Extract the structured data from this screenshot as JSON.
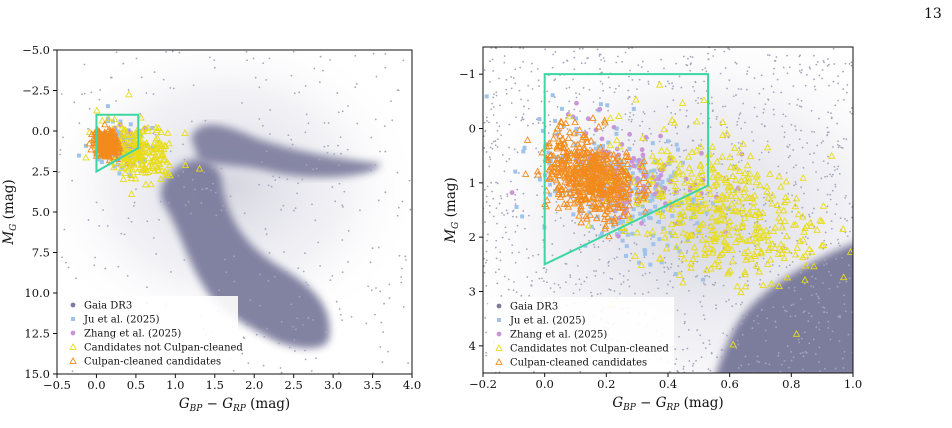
{
  "page": {
    "number": "13"
  },
  "colors": {
    "gaia": "#7b7b9d",
    "ju": "#9fc3ea",
    "zhang": "#c995d6",
    "not_cleaned": "#ece339",
    "cleaned": "#f28b1c",
    "box": "#3bd6a1"
  },
  "chart_data": [
    {
      "type": "scatter",
      "xlabel": "G_BP − G_RP (mag)",
      "ylabel": "M_G (mag)",
      "xlim": [
        -0.5,
        4.0
      ],
      "ylim": [
        15.0,
        -5.0
      ],
      "y_inverted": true,
      "xticks": [
        "−0.5",
        "0.0",
        "0.5",
        "1.0",
        "1.5",
        "2.0",
        "2.5",
        "3.0",
        "3.5",
        "4.0"
      ],
      "yticks": [
        "−5.0",
        "−2.5",
        "0.0",
        "2.5",
        "5.0",
        "7.5",
        "10.0",
        "12.5",
        "15.0"
      ],
      "legend_position": "lower-left",
      "legend": [
        "Gaia DR3",
        "Ju et al. (2025)",
        "Zhang et al. (2025)",
        "Candidates not Culpan-cleaned",
        "Culpan-cleaned candidates"
      ],
      "selection_box": [
        [
          0,
          -1.0
        ],
        [
          0.53,
          -1.0
        ],
        [
          0.53,
          1.05
        ],
        [
          0,
          2.5
        ]
      ],
      "gaia_density": [
        {
          "x": 1.25,
          "y": 6.5
        },
        {
          "x": 1.55,
          "y": 9.0
        },
        {
          "x": 2.0,
          "y": 11.0
        },
        {
          "x": 2.45,
          "y": 12.6
        },
        {
          "x": 1.5,
          "y": 1.5
        },
        {
          "x": 2.3,
          "y": 2.6
        }
      ],
      "series": [
        {
          "name": "Ju et al. (2025)",
          "center": [
            0.3,
            1.0
          ],
          "spread": [
            0.25,
            1.2
          ]
        },
        {
          "name": "Zhang et al. (2025)",
          "center": [
            0.35,
            0.9
          ],
          "spread": [
            0.2,
            0.8
          ]
        },
        {
          "name": "Candidates not Culpan-cleaned",
          "center": [
            0.55,
            1.2
          ],
          "spread": [
            0.4,
            1.4
          ]
        },
        {
          "name": "Culpan-cleaned candidates",
          "center": [
            0.12,
            0.8
          ],
          "spread": [
            0.12,
            0.7
          ]
        }
      ]
    },
    {
      "type": "scatter",
      "xlabel": "G_BP − G_RP (mag)",
      "ylabel": "M_G (mag)",
      "xlim": [
        -0.2,
        1.0
      ],
      "ylim": [
        4.5,
        -1.5
      ],
      "y_inverted": true,
      "xticks": [
        "−0.2",
        "0.0",
        "0.2",
        "0.4",
        "0.6",
        "0.8",
        "1.0"
      ],
      "yticks": [
        "−1",
        "0",
        "1",
        "2",
        "3",
        "4"
      ],
      "legend_position": "lower-left",
      "legend": [
        "Gaia DR3",
        "Ju et al. (2025)",
        "Zhang et al. (2025)",
        "Candidates not Culpan-cleaned",
        "Culpan-cleaned candidates"
      ],
      "selection_box": [
        [
          0,
          -1.0
        ],
        [
          0.53,
          -1.0
        ],
        [
          0.53,
          1.05
        ],
        [
          0,
          2.5
        ]
      ],
      "series": [
        {
          "name": "Ju et al. (2025)",
          "center": [
            0.25,
            1.1
          ],
          "spread": [
            0.22,
            1.0
          ]
        },
        {
          "name": "Zhang et al. (2025)",
          "center": [
            0.3,
            0.9
          ],
          "spread": [
            0.2,
            0.8
          ]
        },
        {
          "name": "Candidates not Culpan-cleaned",
          "center": [
            0.55,
            1.5
          ],
          "spread": [
            0.28,
            1.1
          ]
        },
        {
          "name": "Culpan-cleaned candidates",
          "center": [
            0.15,
            0.9
          ],
          "spread": [
            0.12,
            0.6
          ]
        }
      ]
    }
  ]
}
